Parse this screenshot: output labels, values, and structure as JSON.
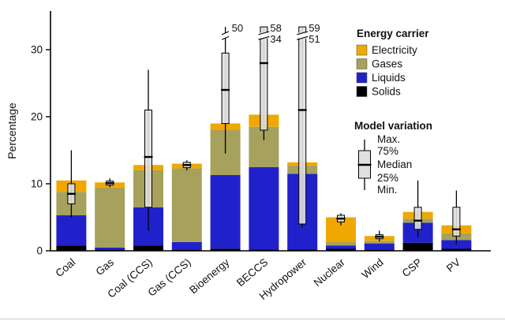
{
  "figure": {
    "ylabel": "Percentage",
    "legend_carrier": {
      "title": "Energy carrier",
      "items": [
        {
          "label": "Electricity",
          "color": "#F0A800"
        },
        {
          "label": "Gases",
          "color": "#A6A15C"
        },
        {
          "label": "Liquids",
          "color": "#2121CC"
        },
        {
          "label": "Solids",
          "color": "#000000"
        }
      ]
    },
    "legend_variation": {
      "title": "Model variation",
      "items": [
        "Max.",
        "75%",
        "Median",
        "25%",
        "Min."
      ]
    }
  },
  "chart_data": {
    "type": "bar",
    "stacked": true,
    "title": "",
    "xlabel": "",
    "ylabel": "Percentage",
    "ylim": [
      0,
      33.5
    ],
    "yticks": [
      0,
      10,
      20,
      30
    ],
    "grid": false,
    "legend_position": "top-right",
    "categories": [
      "Coal",
      "Gas",
      "Coal (CCS)",
      "Gas (CCS)",
      "Bioenergy",
      "BECCS",
      "Hydropower",
      "Nuclear",
      "Wind",
      "CSP",
      "PV"
    ],
    "series": [
      {
        "name": "Solids",
        "color": "#000000",
        "values": [
          0.8,
          0.2,
          0.8,
          0.2,
          0.3,
          0.2,
          0.2,
          0.3,
          0.2,
          1.2,
          0.3
        ]
      },
      {
        "name": "Liquids",
        "color": "#2121CC",
        "values": [
          4.5,
          0.3,
          5.7,
          1.1,
          11.0,
          12.3,
          11.3,
          0.5,
          0.9,
          3.0,
          1.3
        ]
      },
      {
        "name": "Gases",
        "color": "#A6A15C",
        "values": [
          3.5,
          9.0,
          5.5,
          11.0,
          6.7,
          6.0,
          1.2,
          0.5,
          0.4,
          0.6,
          1.0
        ]
      },
      {
        "name": "Electricity",
        "color": "#F0A800",
        "values": [
          1.7,
          0.7,
          0.8,
          0.7,
          1.0,
          1.8,
          0.5,
          3.7,
          0.7,
          1.0,
          1.2
        ]
      }
    ],
    "boxplots": [
      {
        "category": "Coal",
        "min": 5.0,
        "q1": 7.0,
        "median": 8.5,
        "q3": 10.0,
        "max": 15.0
      },
      {
        "category": "Gas",
        "min": 9.5,
        "q1": 9.8,
        "median": 10.1,
        "q3": 10.4,
        "max": 10.8
      },
      {
        "category": "Coal (CCS)",
        "min": 3.0,
        "q1": 6.5,
        "median": 14.0,
        "q3": 21.0,
        "max": 27.0
      },
      {
        "category": "Gas (CCS)",
        "min": 12.0,
        "q1": 12.4,
        "median": 12.8,
        "q3": 13.2,
        "max": 13.5
      },
      {
        "category": "Bioenergy",
        "min": 14.5,
        "q1": 19.0,
        "median": 24.0,
        "q3": 29.5,
        "max": 50.0,
        "clipped": true,
        "labels": [
          "50"
        ]
      },
      {
        "category": "BECCS",
        "min": 16.5,
        "q1": 18.0,
        "median": 28.0,
        "q3": 34.0,
        "max": 58.0,
        "clipped": true,
        "labels": [
          "58",
          "34"
        ]
      },
      {
        "category": "Hydropower",
        "min": 3.5,
        "q1": 4.0,
        "median": 21.0,
        "q3": 51.0,
        "max": 59.0,
        "clipped": true,
        "labels": [
          "59",
          "51"
        ]
      },
      {
        "category": "Nuclear",
        "min": 3.8,
        "q1": 4.3,
        "median": 4.8,
        "q3": 5.3,
        "max": 5.6
      },
      {
        "category": "Wind",
        "min": 1.4,
        "q1": 1.8,
        "median": 2.1,
        "q3": 2.4,
        "max": 3.0
      },
      {
        "category": "CSP",
        "min": 2.0,
        "q1": 3.2,
        "median": 4.5,
        "q3": 6.5,
        "max": 10.5
      },
      {
        "category": "PV",
        "min": 1.0,
        "q1": 2.2,
        "median": 3.2,
        "q3": 6.5,
        "max": 9.0
      }
    ],
    "box_style": {
      "fill": "#E0E0E0",
      "stroke": "#000000"
    }
  }
}
